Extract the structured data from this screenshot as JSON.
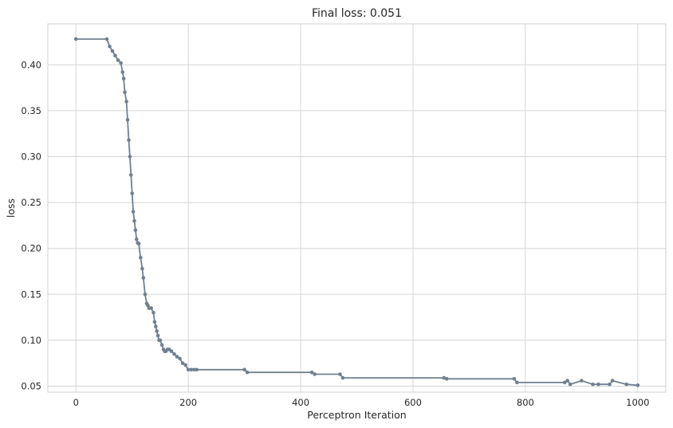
{
  "chart_data": {
    "type": "line",
    "title": "Final loss: 0.051",
    "xlabel": "Perceptron Iteration",
    "ylabel": "loss",
    "xlim": [
      -50,
      1050
    ],
    "ylim": [
      0.0435,
      0.4445
    ],
    "xticks": [
      0,
      200,
      400,
      600,
      800,
      1000
    ],
    "yticks": [
      0.05,
      0.1,
      0.15,
      0.2,
      0.25,
      0.3,
      0.35,
      0.4
    ],
    "ytick_labels": [
      "0.05",
      "0.10",
      "0.15",
      "0.20",
      "0.25",
      "0.30",
      "0.35",
      "0.40"
    ],
    "grid": true,
    "marker": "circle",
    "color": "#708090",
    "series": [
      {
        "name": "",
        "x": [
          0,
          55,
          60,
          65,
          70,
          75,
          80,
          83,
          85,
          87,
          90,
          92,
          94,
          96,
          98,
          100,
          102,
          104,
          106,
          108,
          110,
          112,
          115,
          118,
          120,
          123,
          126,
          128,
          130,
          134,
          138,
          140,
          142,
          144,
          146,
          148,
          150,
          153,
          156,
          158,
          160,
          163,
          166,
          170,
          175,
          180,
          185,
          190,
          195,
          200,
          205,
          210,
          215,
          300,
          305,
          420,
          425,
          470,
          475,
          655,
          660,
          780,
          785,
          870,
          875,
          880,
          900,
          920,
          930,
          950,
          955,
          980,
          1000
        ],
        "y": [
          0.428,
          0.428,
          0.42,
          0.415,
          0.41,
          0.405,
          0.402,
          0.392,
          0.385,
          0.37,
          0.36,
          0.34,
          0.318,
          0.3,
          0.28,
          0.26,
          0.24,
          0.23,
          0.22,
          0.21,
          0.206,
          0.205,
          0.19,
          0.178,
          0.168,
          0.15,
          0.14,
          0.138,
          0.135,
          0.135,
          0.13,
          0.12,
          0.115,
          0.11,
          0.105,
          0.1,
          0.1,
          0.095,
          0.09,
          0.088,
          0.088,
          0.09,
          0.09,
          0.088,
          0.085,
          0.082,
          0.08,
          0.075,
          0.073,
          0.068,
          0.068,
          0.068,
          0.068,
          0.068,
          0.065,
          0.065,
          0.063,
          0.063,
          0.059,
          0.059,
          0.058,
          0.058,
          0.054,
          0.054,
          0.056,
          0.052,
          0.056,
          0.052,
          0.052,
          0.052,
          0.056,
          0.052,
          0.051
        ]
      }
    ]
  }
}
